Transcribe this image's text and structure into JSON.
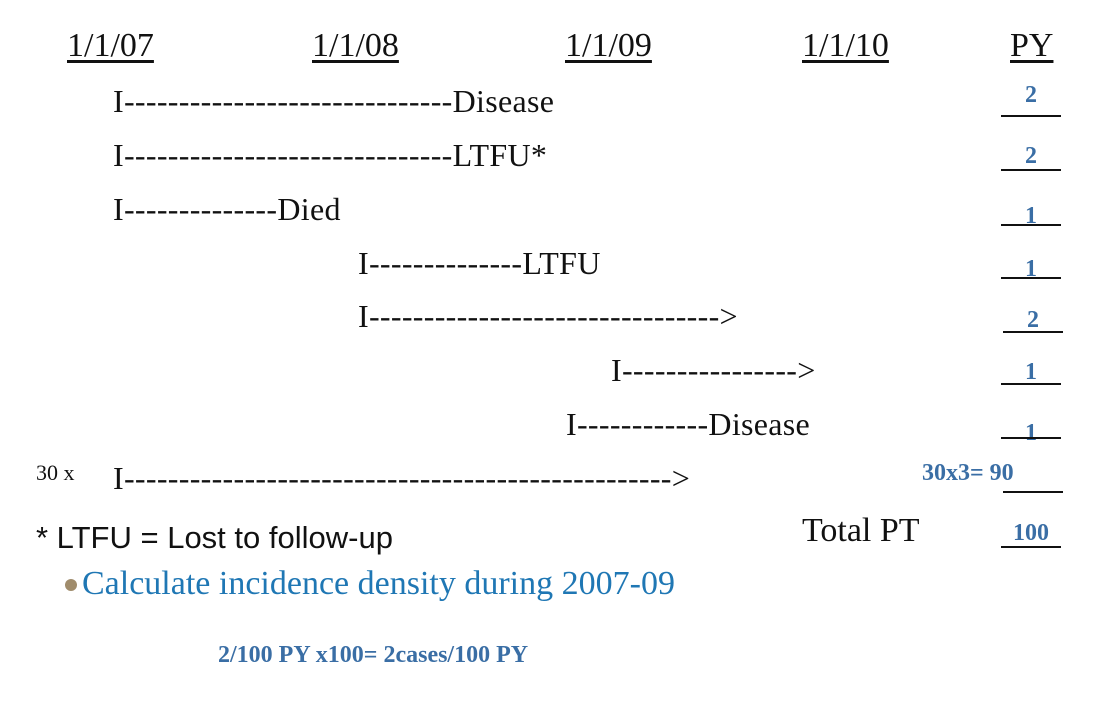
{
  "header": {
    "dates": [
      "1/1/07",
      "1/1/08",
      "1/1/09",
      "1/1/10"
    ],
    "py_label": "PY"
  },
  "rows": [
    {
      "line": "I------------------------------Disease",
      "py": "2"
    },
    {
      "line": "I------------------------------LTFU*",
      "py": "2"
    },
    {
      "line": "I--------------Died",
      "py": "1"
    },
    {
      "line": "I--------------LTFU",
      "py": "1"
    },
    {
      "line": "I-------------------------------->",
      "py": "2"
    },
    {
      "line": "I---------------->",
      "py": "1"
    },
    {
      "line": "I------------Disease",
      "py": "1"
    },
    {
      "prefix": "30 x",
      "line": "I-------------------------------------------------->",
      "py": "30x3= 90"
    }
  ],
  "footnote": "* LTFU = Lost to follow-up",
  "total": {
    "label": "Total PT",
    "value": "100"
  },
  "bullet": {
    "text": "Calculate incidence density during 2007-09",
    "dot_color": "#a08c6c"
  },
  "answer": "2/100 PY x100= 2cases/100 PY",
  "colors": {
    "accent_blue": "#3a6ea5",
    "bullet_blue": "#1f77b4"
  }
}
